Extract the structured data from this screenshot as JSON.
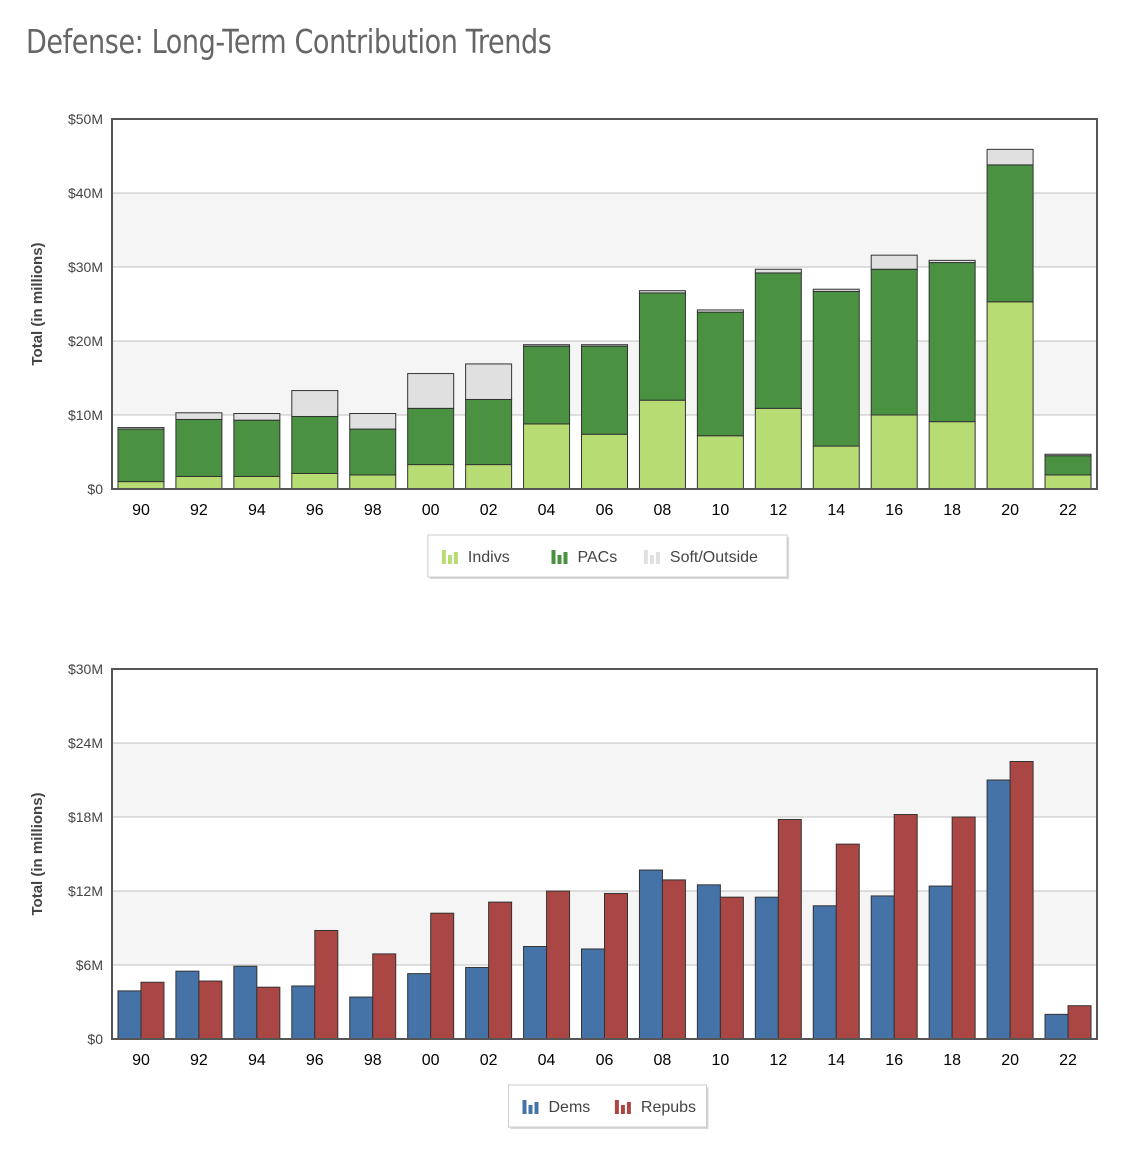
{
  "page": {
    "title": "Defense: Long-Term Contribution Trends"
  },
  "chart_data": [
    {
      "type": "bar",
      "stacked": true,
      "categories": [
        "90",
        "92",
        "94",
        "96",
        "98",
        "00",
        "02",
        "04",
        "06",
        "08",
        "10",
        "12",
        "14",
        "16",
        "18",
        "20",
        "22"
      ],
      "series": [
        {
          "name": "Indivs",
          "color": "#b8dc74",
          "values": [
            1.0,
            1.7,
            1.7,
            2.1,
            1.9,
            3.3,
            3.3,
            8.8,
            7.4,
            12.0,
            7.2,
            10.9,
            5.8,
            10.0,
            9.1,
            25.3,
            1.9
          ]
        },
        {
          "name": "PACs",
          "color": "#4a9142",
          "values": [
            7.1,
            7.7,
            7.6,
            7.7,
            6.2,
            7.6,
            8.8,
            10.5,
            11.9,
            14.5,
            16.7,
            18.3,
            20.9,
            19.7,
            21.5,
            18.5,
            2.6
          ]
        },
        {
          "name": "Soft/Outside",
          "color": "#e0e0e0",
          "values": [
            0.2,
            0.9,
            0.9,
            3.5,
            2.1,
            4.7,
            4.8,
            0.2,
            0.2,
            0.3,
            0.3,
            0.5,
            0.3,
            1.9,
            0.3,
            2.1,
            0.2
          ]
        }
      ],
      "ylabel": "Total (in millions)",
      "ylim": [
        0,
        50
      ],
      "yticks": [
        "$0",
        "$10M",
        "$20M",
        "$30M",
        "$40M",
        "$50M"
      ],
      "grid": true,
      "legend_position": "bottom-center"
    },
    {
      "type": "bar",
      "stacked": false,
      "categories": [
        "90",
        "92",
        "94",
        "96",
        "98",
        "00",
        "02",
        "04",
        "06",
        "08",
        "10",
        "12",
        "14",
        "16",
        "18",
        "20",
        "22"
      ],
      "series": [
        {
          "name": "Dems",
          "color": "#4572a7",
          "values": [
            3.9,
            5.5,
            5.9,
            4.3,
            3.4,
            5.3,
            5.8,
            7.5,
            7.3,
            13.7,
            12.5,
            11.5,
            10.8,
            11.6,
            12.4,
            21.0,
            2.0
          ]
        },
        {
          "name": "Repubs",
          "color": "#aa4643",
          "values": [
            4.6,
            4.7,
            4.2,
            8.8,
            6.9,
            10.2,
            11.1,
            12.0,
            11.8,
            12.9,
            11.5,
            17.8,
            15.8,
            18.2,
            18.0,
            22.5,
            2.7
          ]
        }
      ],
      "ylabel": "Total (in millions)",
      "ylim": [
        0,
        30
      ],
      "yticks": [
        "$0",
        "$6M",
        "$12M",
        "$18M",
        "$24M",
        "$30M"
      ],
      "grid": true,
      "legend_position": "bottom-center"
    }
  ]
}
